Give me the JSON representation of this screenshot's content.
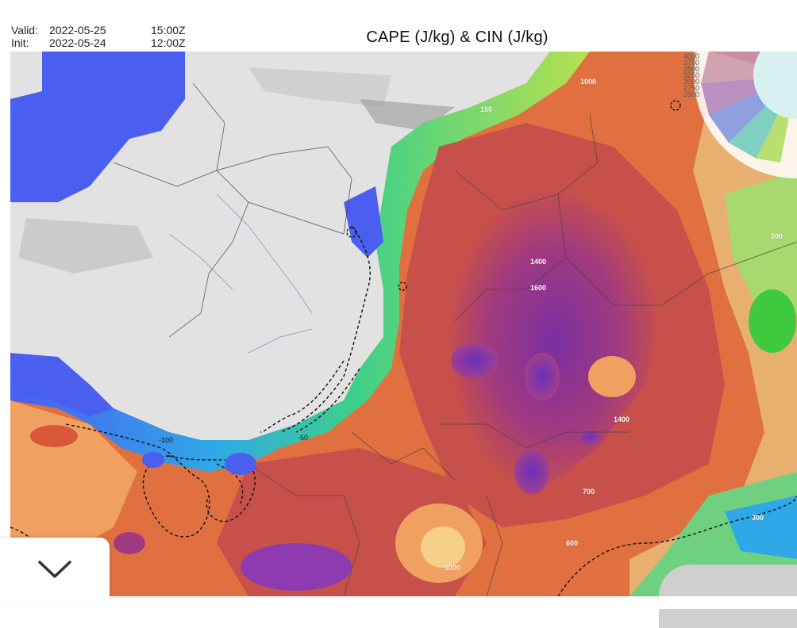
{
  "header": {
    "valid_label": "Valid:",
    "valid_date": "2022-05-25",
    "valid_time": "15:00Z",
    "init_label": "Init:",
    "init_date": "2022-05-24",
    "init_time": "12:00Z",
    "title": "CAPE (J/kg) & CIN (J/kg)"
  },
  "map": {
    "cape_contour_labels": [
      "1000",
      "150",
      "1400",
      "1600",
      "1400",
      "500",
      "700",
      "300",
      "600",
      "1000"
    ],
    "cin_contour_labels": [
      "-100",
      "-50"
    ],
    "legend_scale_values": [
      "4000",
      "3750",
      "3500",
      "3250",
      "3000",
      "2750",
      "2500",
      "2250",
      "2000",
      "1750",
      "1500",
      "1250",
      "1000"
    ],
    "colors": {
      "sea": "#4a5ef0",
      "land_low": "#e0e0e0",
      "cape_high": "#9c3a8a",
      "cape_mid": "#d9583a",
      "cape_low": "#f0a060",
      "green": "#3fc93f"
    }
  },
  "controls": {
    "collapse_icon": "chevron-down-icon"
  }
}
